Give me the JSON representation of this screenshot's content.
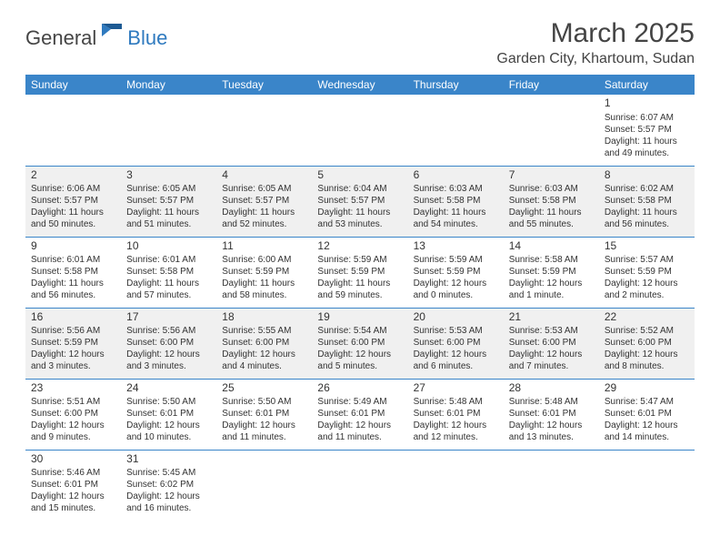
{
  "logo": {
    "text1": "General",
    "text2": "Blue"
  },
  "title": "March 2025",
  "location": "Garden City, Khartoum, Sudan",
  "colors": {
    "header_bg": "#3a85c9",
    "header_text": "#ffffff",
    "border": "#3a85c9",
    "shaded_bg": "#f0f0f0",
    "text": "#333333",
    "logo_gray": "#454545",
    "logo_blue": "#2f7abf"
  },
  "days_of_week": [
    "Sunday",
    "Monday",
    "Tuesday",
    "Wednesday",
    "Thursday",
    "Friday",
    "Saturday"
  ],
  "weeks": [
    [
      null,
      null,
      null,
      null,
      null,
      null,
      {
        "n": "1",
        "sunrise": "6:07 AM",
        "sunset": "5:57 PM",
        "daylight": "11 hours and 49 minutes."
      }
    ],
    [
      {
        "n": "2",
        "sunrise": "6:06 AM",
        "sunset": "5:57 PM",
        "daylight": "11 hours and 50 minutes."
      },
      {
        "n": "3",
        "sunrise": "6:05 AM",
        "sunset": "5:57 PM",
        "daylight": "11 hours and 51 minutes."
      },
      {
        "n": "4",
        "sunrise": "6:05 AM",
        "sunset": "5:57 PM",
        "daylight": "11 hours and 52 minutes."
      },
      {
        "n": "5",
        "sunrise": "6:04 AM",
        "sunset": "5:57 PM",
        "daylight": "11 hours and 53 minutes."
      },
      {
        "n": "6",
        "sunrise": "6:03 AM",
        "sunset": "5:58 PM",
        "daylight": "11 hours and 54 minutes."
      },
      {
        "n": "7",
        "sunrise": "6:03 AM",
        "sunset": "5:58 PM",
        "daylight": "11 hours and 55 minutes."
      },
      {
        "n": "8",
        "sunrise": "6:02 AM",
        "sunset": "5:58 PM",
        "daylight": "11 hours and 56 minutes."
      }
    ],
    [
      {
        "n": "9",
        "sunrise": "6:01 AM",
        "sunset": "5:58 PM",
        "daylight": "11 hours and 56 minutes."
      },
      {
        "n": "10",
        "sunrise": "6:01 AM",
        "sunset": "5:58 PM",
        "daylight": "11 hours and 57 minutes."
      },
      {
        "n": "11",
        "sunrise": "6:00 AM",
        "sunset": "5:59 PM",
        "daylight": "11 hours and 58 minutes."
      },
      {
        "n": "12",
        "sunrise": "5:59 AM",
        "sunset": "5:59 PM",
        "daylight": "11 hours and 59 minutes."
      },
      {
        "n": "13",
        "sunrise": "5:59 AM",
        "sunset": "5:59 PM",
        "daylight": "12 hours and 0 minutes."
      },
      {
        "n": "14",
        "sunrise": "5:58 AM",
        "sunset": "5:59 PM",
        "daylight": "12 hours and 1 minute."
      },
      {
        "n": "15",
        "sunrise": "5:57 AM",
        "sunset": "5:59 PM",
        "daylight": "12 hours and 2 minutes."
      }
    ],
    [
      {
        "n": "16",
        "sunrise": "5:56 AM",
        "sunset": "5:59 PM",
        "daylight": "12 hours and 3 minutes."
      },
      {
        "n": "17",
        "sunrise": "5:56 AM",
        "sunset": "6:00 PM",
        "daylight": "12 hours and 3 minutes."
      },
      {
        "n": "18",
        "sunrise": "5:55 AM",
        "sunset": "6:00 PM",
        "daylight": "12 hours and 4 minutes."
      },
      {
        "n": "19",
        "sunrise": "5:54 AM",
        "sunset": "6:00 PM",
        "daylight": "12 hours and 5 minutes."
      },
      {
        "n": "20",
        "sunrise": "5:53 AM",
        "sunset": "6:00 PM",
        "daylight": "12 hours and 6 minutes."
      },
      {
        "n": "21",
        "sunrise": "5:53 AM",
        "sunset": "6:00 PM",
        "daylight": "12 hours and 7 minutes."
      },
      {
        "n": "22",
        "sunrise": "5:52 AM",
        "sunset": "6:00 PM",
        "daylight": "12 hours and 8 minutes."
      }
    ],
    [
      {
        "n": "23",
        "sunrise": "5:51 AM",
        "sunset": "6:00 PM",
        "daylight": "12 hours and 9 minutes."
      },
      {
        "n": "24",
        "sunrise": "5:50 AM",
        "sunset": "6:01 PM",
        "daylight": "12 hours and 10 minutes."
      },
      {
        "n": "25",
        "sunrise": "5:50 AM",
        "sunset": "6:01 PM",
        "daylight": "12 hours and 11 minutes."
      },
      {
        "n": "26",
        "sunrise": "5:49 AM",
        "sunset": "6:01 PM",
        "daylight": "12 hours and 11 minutes."
      },
      {
        "n": "27",
        "sunrise": "5:48 AM",
        "sunset": "6:01 PM",
        "daylight": "12 hours and 12 minutes."
      },
      {
        "n": "28",
        "sunrise": "5:48 AM",
        "sunset": "6:01 PM",
        "daylight": "12 hours and 13 minutes."
      },
      {
        "n": "29",
        "sunrise": "5:47 AM",
        "sunset": "6:01 PM",
        "daylight": "12 hours and 14 minutes."
      }
    ],
    [
      {
        "n": "30",
        "sunrise": "5:46 AM",
        "sunset": "6:01 PM",
        "daylight": "12 hours and 15 minutes."
      },
      {
        "n": "31",
        "sunrise": "5:45 AM",
        "sunset": "6:02 PM",
        "daylight": "12 hours and 16 minutes."
      },
      null,
      null,
      null,
      null,
      null
    ]
  ],
  "labels": {
    "sunrise": "Sunrise: ",
    "sunset": "Sunset: ",
    "daylight": "Daylight: "
  }
}
